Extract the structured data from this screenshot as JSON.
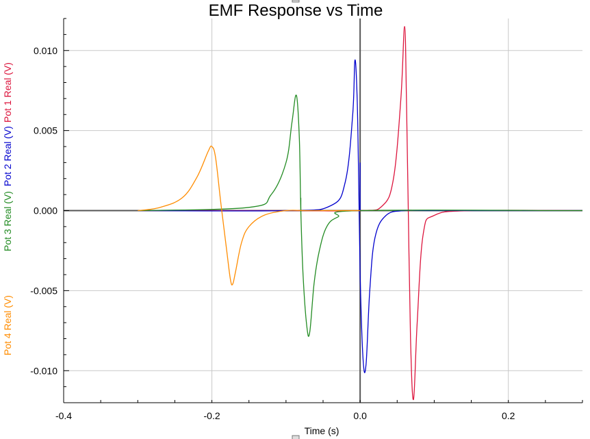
{
  "chart_data": {
    "type": "line",
    "title": "EMF Response vs Time",
    "xlabel": "Time (s)",
    "ylabels": [
      {
        "text": "Pot 1 Real (V)",
        "color": "#dc143c"
      },
      {
        "text": "Pot 2 Real (V)",
        "color": "#0000cd"
      },
      {
        "text": "Pot 3 Real (V)",
        "color": "#228b22"
      },
      {
        "text": "Pot 4 Real (V)",
        "color": "#ff8c00"
      }
    ],
    "xlim": [
      -0.4,
      0.3
    ],
    "ylim": [
      -0.012,
      0.012
    ],
    "x_ticks": [
      -0.4,
      -0.2,
      0.0,
      0.2
    ],
    "x_tick_labels": [
      "-0.4",
      "-0.2",
      "0.0",
      "0.2"
    ],
    "y_ticks": [
      0.01,
      0.005,
      0.0,
      -0.005,
      -0.01
    ],
    "y_tick_labels": [
      "0.010",
      "0.005",
      "0.000",
      "-0.005",
      "-0.010"
    ],
    "grid": true,
    "series": [
      {
        "name": "Pot 1 Real (V)",
        "color": "#dc143c",
        "x": [
          -0.3,
          -0.1,
          0.0,
          0.03,
          0.045,
          0.055,
          0.06,
          0.0625,
          0.065,
          0.068,
          0.072,
          0.077,
          0.085,
          0.1,
          0.15,
          0.3
        ],
        "y": [
          0.0,
          0.0,
          0.0,
          0.0003,
          0.002,
          0.007,
          0.0115,
          0.007,
          0.0,
          -0.008,
          -0.0118,
          -0.007,
          -0.0015,
          -0.0003,
          0.0,
          0.0
        ]
      },
      {
        "name": "Pot 2 Real (V)",
        "color": "#0000cd",
        "x": [
          -0.3,
          -0.1,
          -0.04,
          -0.02,
          -0.01,
          -0.007,
          -0.004,
          -0.002,
          0.0,
          0.004,
          0.008,
          0.013,
          0.02,
          0.035,
          0.06,
          0.1,
          0.3
        ],
        "y": [
          0.0,
          0.0,
          0.0003,
          0.0018,
          0.006,
          0.0094,
          0.007,
          0.002,
          -0.004,
          -0.0093,
          -0.0096,
          -0.005,
          -0.0017,
          -0.0003,
          0.0,
          0.0,
          0.0
        ],
        "spike": {
          "x": 0.0,
          "y": 0.003
        }
      },
      {
        "name": "Pot 3 Real (V)",
        "color": "#228b22",
        "x": [
          -0.3,
          -0.15,
          -0.12,
          -0.1,
          -0.092,
          -0.086,
          -0.082,
          -0.08,
          -0.077,
          -0.072,
          -0.068,
          -0.062,
          -0.055,
          -0.045,
          -0.03,
          0.0,
          0.3
        ],
        "y": [
          0.0,
          0.0002,
          0.001,
          0.003,
          0.0055,
          0.0072,
          0.0045,
          0.0,
          -0.004,
          -0.0072,
          -0.0076,
          -0.0045,
          -0.0025,
          -0.001,
          -0.0004,
          0.0,
          0.0
        ],
        "spike": {
          "x": -0.08,
          "y": 0.0008
        }
      },
      {
        "name": "Pot 4 Real (V)",
        "color": "#ff8c00",
        "x": [
          -0.3,
          -0.27,
          -0.24,
          -0.22,
          -0.205,
          -0.2,
          -0.195,
          -0.188,
          -0.18,
          -0.175,
          -0.172,
          -0.168,
          -0.16,
          -0.15,
          -0.13,
          -0.1,
          -0.07,
          0.0
        ],
        "y": [
          0.0,
          0.0002,
          0.0008,
          0.0021,
          0.0037,
          0.004,
          0.0033,
          0.0005,
          -0.0025,
          -0.0043,
          -0.0046,
          -0.0038,
          -0.002,
          -0.001,
          -0.0003,
          0.0,
          0.0,
          0.0
        ]
      }
    ]
  }
}
